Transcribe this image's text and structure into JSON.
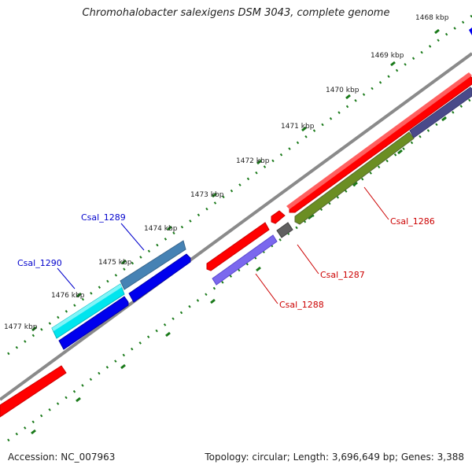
{
  "title": "Chromohalobacter salexigens DSM 3043, complete genome",
  "accession": "Accession: NC_007963",
  "summary": "Topology: circular; Length: 3,696,649 bp; Genes: 3,388",
  "scale_labels": [
    "1468 kbp",
    "1469 kbp",
    "1470 kbp",
    "1471 kbp",
    "1472 kbp",
    "1473 kbp",
    "1474 kbp",
    "1475 kbp",
    "1476 kbp",
    "1477 kbp"
  ],
  "gene_labels": {
    "csal_1286": "Csal_1286",
    "csal_1287": "Csal_1287",
    "csal_1288": "Csal_1288",
    "csal_1289": "Csal_1289",
    "csal_1290": "Csal_1290"
  },
  "colors": {
    "backbone": "#808080",
    "tick_green": "#1a7a1a",
    "forward_label": "#0000cc",
    "reverse_label": "#cc0000",
    "red": "#ff0000",
    "olive": "#6b8e23",
    "slate": "#4a4a8a",
    "cyan": "#00e5ee",
    "steelblue": "#4682b4",
    "blue": "#0000ee",
    "lightslate": "#7b68ee",
    "gray": "#606060"
  }
}
